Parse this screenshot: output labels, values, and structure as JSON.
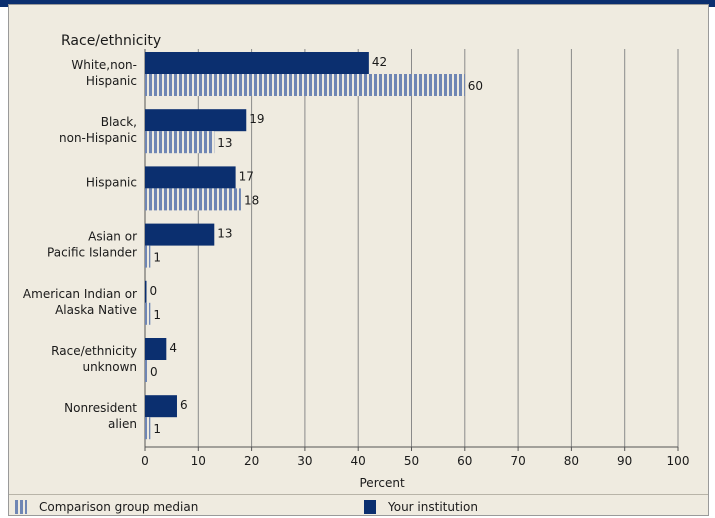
{
  "chart_data": {
    "type": "bar",
    "orientation": "horizontal",
    "title": "Race/ethnicity",
    "xlabel": "Percent",
    "xlim": [
      0,
      100
    ],
    "xticks": [
      0,
      10,
      20,
      30,
      40,
      50,
      60,
      70,
      80,
      90,
      100
    ],
    "grid": true,
    "categories": [
      [
        "White,non-",
        "Hispanic"
      ],
      [
        "Black,",
        "non-Hispanic"
      ],
      [
        "Hispanic"
      ],
      [
        "Asian or",
        "Pacific Islander"
      ],
      [
        "American Indian or",
        "Alaska Native"
      ],
      [
        "Race/ethnicity",
        "unknown"
      ],
      [
        "Nonresident",
        "alien"
      ]
    ],
    "series": [
      {
        "name": "Your institution",
        "values": [
          42,
          19,
          17,
          13,
          0,
          4,
          6
        ],
        "color": "#0b2f6f"
      },
      {
        "name": "Comparison group median",
        "values": [
          60,
          13,
          18,
          1,
          1,
          0,
          1
        ],
        "color": "#6f86b4"
      }
    ],
    "legend_position": "bottom"
  },
  "legend": {
    "comparison_label": "Comparison group median",
    "institution_label": "Your institution"
  },
  "colors": {
    "institution": "#0b2f6f",
    "comparison": "#6f86b4",
    "background": "#efebe0",
    "grid": "#808080"
  }
}
